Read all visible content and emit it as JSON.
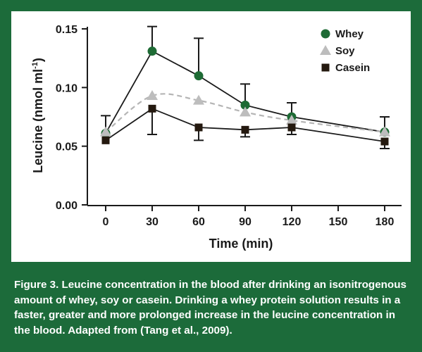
{
  "figure": {
    "caption": "Figure 3. Leucine concentration in the blood after drinking an isonitrogenous amount of whey, soy or casein. Drinking a whey protein solution results in a faster, greater and more prolonged increase in the leucine concentration in the blood. Adapted from (Tang et al., 2009).",
    "background_color": "#1c6b3a"
  },
  "chart_data": {
    "type": "line",
    "title": "",
    "xlabel": "Time (min)",
    "ylabel": "Leucine (nmol ml",
    "ylabel_superscript": "-1",
    "ylabel_suffix": ")",
    "x_ticks": [
      0,
      30,
      60,
      90,
      120,
      150,
      180
    ],
    "y_ticks": [
      "0.00",
      "0.05",
      "0.10",
      "0.15"
    ],
    "xlim": [
      0,
      180
    ],
    "ylim": [
      0,
      0.15
    ],
    "grid": false,
    "legend_position": "top-right",
    "series": [
      {
        "name": "Whey",
        "marker": "circle",
        "color": "#1e6b35",
        "line_color": "#1a1a1a",
        "line_style": "solid",
        "x": [
          0,
          30,
          60,
          90,
          120,
          180
        ],
        "y": [
          0.061,
          0.131,
          0.11,
          0.085,
          0.075,
          0.062
        ],
        "error_upper": [
          0.076,
          0.152,
          0.142,
          0.103,
          0.087,
          0.075
        ]
      },
      {
        "name": "Soy",
        "marker": "triangle",
        "color": "#bdbdbd",
        "line_color": "#b5b5b5",
        "line_style": "dashed",
        "x": [
          0,
          30,
          60,
          90,
          120,
          180
        ],
        "y": [
          0.062,
          0.093,
          0.089,
          0.079,
          0.072,
          0.062
        ],
        "error_upper": []
      },
      {
        "name": "Casein",
        "marker": "square",
        "color": "#24190f",
        "line_color": "#1a1a1a",
        "line_style": "solid",
        "x": [
          0,
          30,
          60,
          90,
          120,
          180
        ],
        "y": [
          0.055,
          0.082,
          0.066,
          0.064,
          0.066,
          0.054
        ],
        "error_lower": [
          0.055,
          0.06,
          0.055,
          0.058,
          0.06,
          0.048
        ]
      }
    ]
  }
}
